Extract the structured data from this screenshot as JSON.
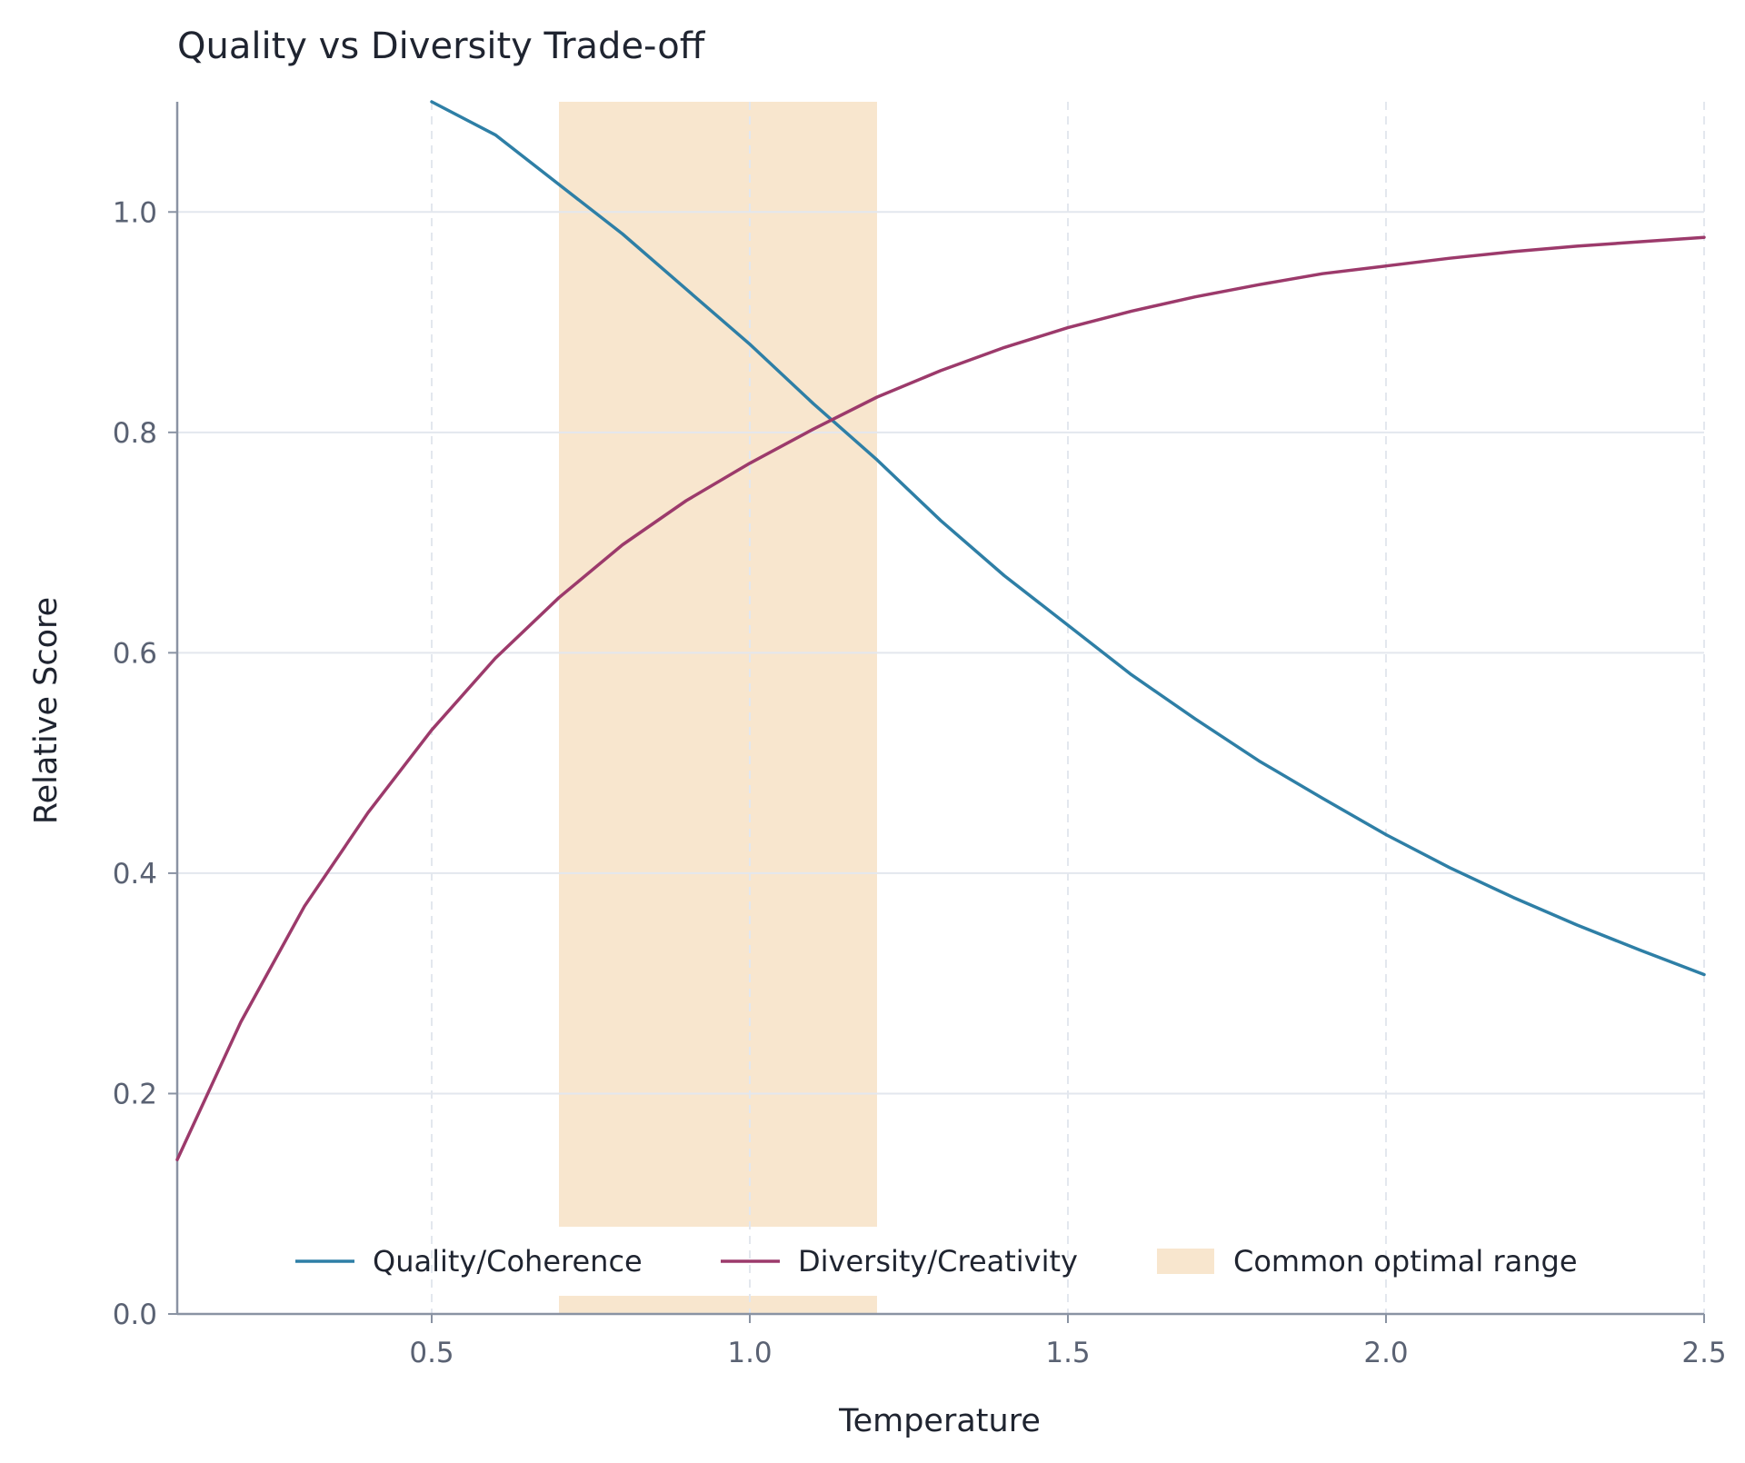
{
  "chart_data": {
    "type": "line",
    "title": "Quality vs Diversity Trade-off",
    "xlabel": "Temperature",
    "ylabel": "Relative Score",
    "xlim": [
      0.1,
      2.5
    ],
    "ylim": [
      0.0,
      1.1
    ],
    "x_ticks": [
      "0.5",
      "1.0",
      "1.5",
      "2.0",
      "2.5"
    ],
    "y_ticks": [
      "0.0",
      "0.2",
      "0.4",
      "0.6",
      "0.8",
      "1.0"
    ],
    "grid": true,
    "legend_position": "bottom-center",
    "shaded_region": {
      "name": "Common optimal range",
      "x_start": 0.7,
      "x_end": 1.2,
      "color": "#f8e6ce"
    },
    "series": [
      {
        "name": "Quality/Coherence",
        "color": "#2e7fa6",
        "x": [
          0.5,
          0.6,
          0.7,
          0.8,
          0.9,
          1.0,
          1.1,
          1.2,
          1.3,
          1.4,
          1.5,
          1.6,
          1.7,
          1.8,
          1.9,
          2.0,
          2.1,
          2.2,
          2.3,
          2.4,
          2.5
        ],
        "y": [
          1.1,
          1.07,
          1.025,
          0.98,
          0.93,
          0.88,
          0.826,
          0.775,
          0.72,
          0.67,
          0.625,
          0.58,
          0.54,
          0.502,
          0.468,
          0.435,
          0.405,
          0.378,
          0.353,
          0.33,
          0.308
        ]
      },
      {
        "name": "Diversity/Creativity",
        "color": "#9c3a6b",
        "x": [
          0.1,
          0.2,
          0.3,
          0.4,
          0.5,
          0.6,
          0.7,
          0.8,
          0.9,
          1.0,
          1.1,
          1.2,
          1.3,
          1.4,
          1.5,
          1.6,
          1.7,
          1.8,
          1.9,
          2.0,
          2.1,
          2.2,
          2.3,
          2.4,
          2.5
        ],
        "y": [
          0.14,
          0.265,
          0.37,
          0.455,
          0.53,
          0.595,
          0.65,
          0.698,
          0.738,
          0.772,
          0.803,
          0.832,
          0.856,
          0.877,
          0.895,
          0.91,
          0.923,
          0.934,
          0.944,
          0.951,
          0.958,
          0.964,
          0.969,
          0.973,
          0.977
        ]
      }
    ]
  }
}
